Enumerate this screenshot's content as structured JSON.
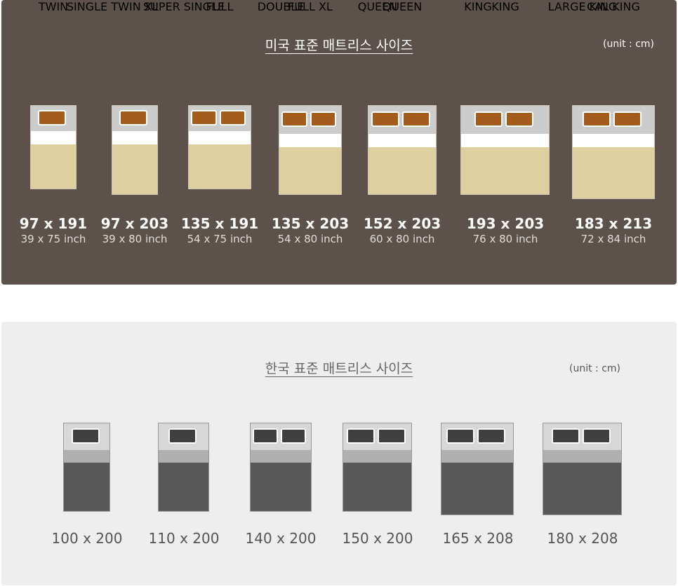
{
  "us": {
    "title": "미국 표준 매트리스 사이즈",
    "unit": "(unit : cm)",
    "beds": [
      {
        "name": "TWIN",
        "cm": "97 x 191",
        "inch": "39 x 75 inch",
        "pillows": 1
      },
      {
        "name": "TWIN XL",
        "cm": "97 x 203",
        "inch": "39 x 80 inch",
        "pillows": 1
      },
      {
        "name": "FULL",
        "cm": "135 x 191",
        "inch": "54 x 75 inch",
        "pillows": 2
      },
      {
        "name": "FULL XL",
        "cm": "135 x 203",
        "inch": "54 x 80 inch",
        "pillows": 2
      },
      {
        "name": "QUEEN",
        "cm": "152 x 203",
        "inch": "60 x 80 inch",
        "pillows": 2
      },
      {
        "name": "KING",
        "cm": "193 x 203",
        "inch": "76 x 80 inch",
        "pillows": 2
      },
      {
        "name": "CAL KING",
        "cm": "183 x 213",
        "inch": "72 x 84 inch",
        "pillows": 2
      }
    ],
    "colors": {
      "panel": "#5c524b",
      "pillow": "#a45c1c",
      "duvet": "#decf9f"
    }
  },
  "kr": {
    "title": "한국 표준 매트리스 사이즈",
    "unit": "(unit : cm)",
    "beds": [
      {
        "name": "SINGLE",
        "cm": "100 x 200",
        "pillows": 1
      },
      {
        "name": "SUPER SINGLE",
        "cm": "110 x 200",
        "pillows": 1
      },
      {
        "name": "DOUBLE",
        "cm": "140 x 200",
        "pillows": 2
      },
      {
        "name": "QUEEN",
        "cm": "150 x 200",
        "pillows": 2
      },
      {
        "name": "KING",
        "cm": "165 x 208",
        "pillows": 2
      },
      {
        "name": "LARGE KING",
        "cm": "180 x 208",
        "pillows": 2
      }
    ],
    "colors": {
      "panel": "#eeeeee",
      "pillow": "#3f3f3f",
      "duvet": "#585858"
    }
  }
}
